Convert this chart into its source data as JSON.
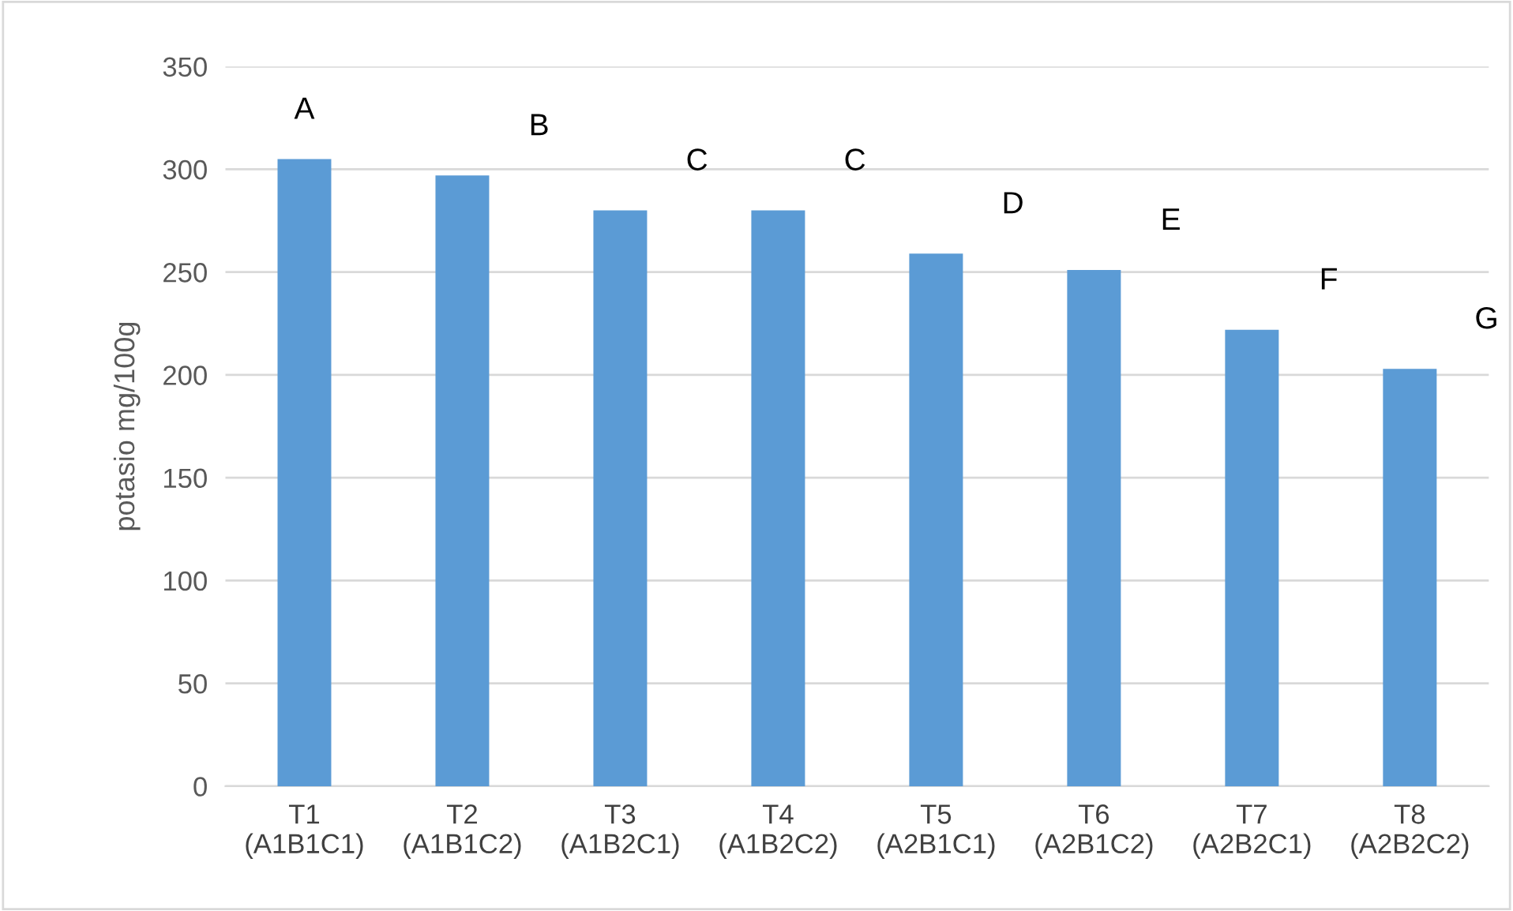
{
  "chart_data": {
    "type": "bar",
    "ylabel": "potasio mg/100g",
    "categories": [
      "T1\n(A1B1C1)",
      "T2\n(A1B1C2)",
      "T3\n(A1B2C1)",
      "T4\n(A1B2C2)",
      "T5\n(A2B1C1)",
      "T6\n(A2B1C2)",
      "T7\n(A2B2C1)",
      "T8\n(A2B2C2)"
    ],
    "values": [
      305,
      297,
      280,
      280,
      259,
      251,
      222,
      203
    ],
    "color": "#5b9bd5",
    "ylim": [
      0,
      350
    ],
    "yticks": [
      0,
      50,
      100,
      150,
      200,
      250,
      300,
      350
    ],
    "grid": "y",
    "annotations": [
      "A",
      "B",
      "C",
      "C",
      "D",
      "E",
      "F",
      "G"
    ]
  }
}
